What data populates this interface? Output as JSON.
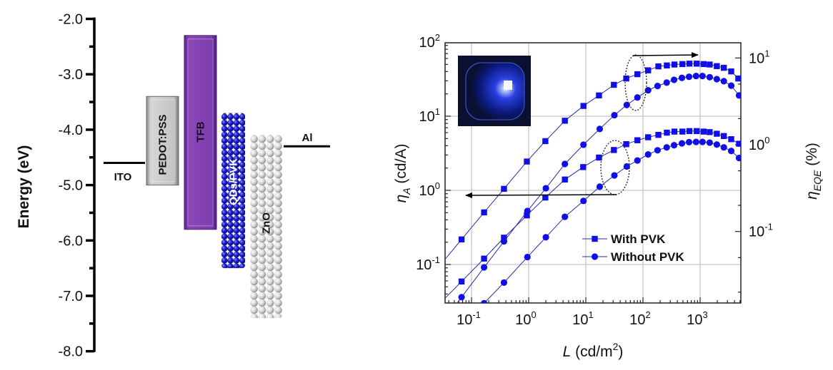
{
  "chart_data": [
    {
      "type": "bar",
      "subtype": "floating-energy-levels",
      "ylabel": "Energy (eV)",
      "ylim": [
        -8.0,
        -2.0
      ],
      "yticks": [
        "-2.0",
        "-3.0",
        "-4.0",
        "-5.0",
        "-6.0",
        "-7.0",
        "-8.0"
      ],
      "layers": [
        {
          "name": "ITO",
          "kind": "line",
          "level": -4.6
        },
        {
          "name": "PEDOT:PSS",
          "kind": "box",
          "top": -3.4,
          "bottom": -5.0,
          "color": "#b0b0b0"
        },
        {
          "name": "TFB",
          "kind": "box",
          "top": -2.3,
          "bottom": -5.8,
          "color": "#7b3aa8"
        },
        {
          "name": "QDs/PVK",
          "kind": "spheres",
          "top": -3.7,
          "bottom": -6.5,
          "color": "#1a1acc"
        },
        {
          "name": "ZnO",
          "kind": "spheres",
          "top": -4.1,
          "bottom": -7.4,
          "color": "#d8d8d8"
        },
        {
          "name": "Al",
          "kind": "line",
          "level": -4.3
        }
      ]
    },
    {
      "type": "line",
      "scale": "log-log",
      "xlabel": {
        "symbol": "L",
        "unit": " (cd/m",
        "unit_exp": "2",
        "unit_end": ")"
      },
      "ylabel_left": {
        "symbol": "η",
        "sub": "A",
        "unit": " (cd/A)"
      },
      "ylabel_right": {
        "symbol": "η",
        "sub": "EQE",
        "unit": " (%)"
      },
      "xlim": [
        0.03,
        5000
      ],
      "ylim_left": [
        0.031,
        100
      ],
      "ylim_right": [
        0.015,
        15
      ],
      "xticks": [
        {
          "base": "10",
          "exp": "-1"
        },
        {
          "base": "10",
          "exp": "0"
        },
        {
          "base": "10",
          "exp": "1"
        },
        {
          "base": "10",
          "exp": "2"
        },
        {
          "base": "10",
          "exp": "3"
        }
      ],
      "yticks_left": [
        {
          "base": "10",
          "exp": "2"
        },
        {
          "base": "10",
          "exp": "1"
        },
        {
          "base": "10",
          "exp": "0"
        },
        {
          "base": "10",
          "exp": "-1"
        }
      ],
      "yticks_right": [
        {
          "base": "10",
          "exp": "1"
        },
        {
          "base": "10",
          "exp": "0"
        },
        {
          "base": "10",
          "exp": "-1"
        }
      ],
      "grid": true,
      "legend_position": "bottom-right",
      "legend": [
        {
          "label": "With PVK",
          "marker": "square"
        },
        {
          "label": "Without PVK",
          "marker": "circle"
        }
      ],
      "marker_color": "#1010e6",
      "line_color": "#2a2aa8",
      "series": [
        {
          "quantity": "EQE",
          "axis": "right",
          "group": "With PVK",
          "marker": "square",
          "x": [
            0.067,
            0.166,
            0.37,
            0.93,
            1.96,
            4.3,
            9.1,
            17,
            31,
            51,
            80,
            123,
            186,
            262,
            355,
            490,
            650,
            870,
            1150,
            1470,
            1960,
            2600,
            3500,
            4650
          ],
          "y": [
            0.081,
            0.166,
            0.31,
            0.64,
            1.1,
            1.89,
            2.8,
            3.7,
            4.9,
            5.8,
            6.5,
            7.2,
            8.0,
            8.2,
            8.4,
            8.5,
            8.6,
            8.6,
            8.5,
            8.4,
            8.05,
            7.7,
            7.0,
            5.8
          ]
        },
        {
          "quantity": "EQE",
          "axis": "right",
          "group": "Without PVK",
          "marker": "circle",
          "x": [
            0.067,
            0.166,
            0.37,
            0.95,
            2.0,
            4.3,
            9.1,
            17.5,
            31.6,
            52,
            80,
            123,
            180,
            260,
            350,
            480,
            640,
            850,
            1100,
            1470,
            1960,
            2600,
            3500,
            4800
          ],
          "y": [
            0.0175,
            0.0386,
            0.077,
            0.172,
            0.315,
            0.6,
            1.0,
            1.52,
            2.19,
            2.87,
            3.5,
            4.24,
            4.75,
            5.2,
            5.6,
            5.9,
            6.07,
            6.2,
            6.2,
            6.0,
            5.7,
            5.4,
            4.8,
            3.7
          ]
        },
        {
          "quantity": "current efficiency",
          "axis": "left",
          "group": "With PVK",
          "marker": "square",
          "x": [
            0.067,
            0.166,
            0.37,
            0.93,
            1.96,
            4.3,
            9,
            17,
            31,
            51,
            80,
            123,
            186,
            262,
            355,
            490,
            650,
            870,
            1150,
            1470,
            1960,
            2600,
            3500,
            4800
          ],
          "y": [
            0.059,
            0.12,
            0.23,
            0.46,
            0.8,
            1.4,
            2.06,
            2.77,
            3.5,
            4.2,
            4.74,
            5.2,
            5.6,
            6.0,
            6.2,
            6.2,
            6.3,
            6.3,
            6.2,
            6.1,
            5.8,
            5.4,
            4.9,
            4.25
          ]
        },
        {
          "quantity": "current efficiency",
          "axis": "left",
          "group": "Without PVK",
          "marker": "circle",
          "x": [
            0.166,
            0.37,
            0.95,
            2.0,
            4.3,
            9.1,
            17.5,
            31.6,
            52,
            80,
            123,
            180,
            260,
            350,
            480,
            640,
            850,
            1100,
            1470,
            1960,
            2600,
            3500,
            4800
          ],
          "y": [
            0.03,
            0.057,
            0.126,
            0.233,
            0.44,
            0.72,
            1.12,
            1.59,
            2.1,
            2.53,
            3.05,
            3.47,
            3.8,
            4.06,
            4.3,
            4.47,
            4.5,
            4.5,
            4.4,
            4.15,
            3.8,
            3.4,
            2.73
          ]
        }
      ],
      "annotations": [
        {
          "type": "ellipse-arrow",
          "direction": "right",
          "points_to": "right axis (EQE curves)"
        },
        {
          "type": "ellipse-arrow",
          "direction": "left",
          "points_to": "left axis (current-efficiency curves)"
        }
      ],
      "inset": "photo of blue-emitting device"
    }
  ]
}
